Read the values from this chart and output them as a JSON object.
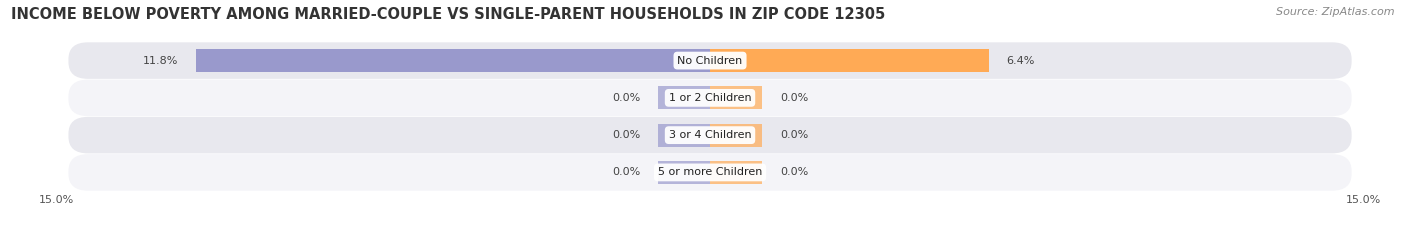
{
  "title": "INCOME BELOW POVERTY AMONG MARRIED-COUPLE VS SINGLE-PARENT HOUSEHOLDS IN ZIP CODE 12305",
  "source": "Source: ZipAtlas.com",
  "categories": [
    "No Children",
    "1 or 2 Children",
    "3 or 4 Children",
    "5 or more Children"
  ],
  "married_values": [
    11.8,
    0.0,
    0.0,
    0.0
  ],
  "single_values": [
    6.4,
    0.0,
    0.0,
    0.0
  ],
  "xlim": 15.0,
  "married_color": "#9999cc",
  "single_color": "#ffaa55",
  "row_bg_color_odd": "#e8e8ee",
  "row_bg_color_even": "#f4f4f8",
  "title_fontsize": 10.5,
  "source_fontsize": 8,
  "value_fontsize": 8,
  "category_fontsize": 8,
  "xlabel_fontsize": 8,
  "bar_height": 0.62,
  "stub_size": 1.2
}
